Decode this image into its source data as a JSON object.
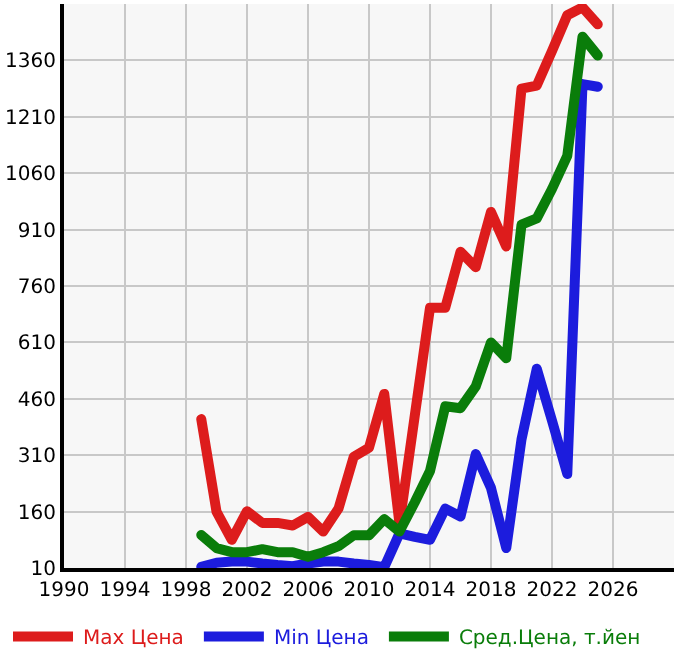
{
  "chart_data": {
    "type": "line",
    "x": [
      1999,
      2000,
      2001,
      2002,
      2003,
      2004,
      2005,
      2006,
      2007,
      2008,
      2009,
      2010,
      2011,
      2012,
      2013,
      2014,
      2015,
      2016,
      2017,
      2018,
      2019,
      2020,
      2021,
      2022,
      2023,
      2024,
      2025
    ],
    "series": [
      {
        "name": "Max Цена",
        "color": "#dd1c1c",
        "values": [
          406,
          160,
          85,
          161,
          130,
          130,
          123,
          146,
          107,
          168,
          306,
          330,
          473,
          127,
          415,
          702,
          702,
          851,
          810,
          957,
          865,
          1285,
          1293,
          1385,
          1480,
          1501,
          1456
        ]
      },
      {
        "name": "Min Цена",
        "color": "#1c1cdd",
        "values": [
          13,
          24,
          27,
          27,
          22,
          18,
          15,
          22,
          27,
          27,
          22,
          18,
          12,
          102,
          93,
          85,
          168,
          147,
          313,
          223,
          63,
          352,
          540,
          402,
          260,
          1297,
          1290
        ]
      },
      {
        "name": "Сред.Цена, т.йен",
        "color": "#0a7d0a",
        "values": [
          98,
          63,
          52,
          52,
          60,
          52,
          52,
          40,
          52,
          68,
          97,
          97,
          140,
          107,
          185,
          268,
          440,
          435,
          493,
          610,
          568,
          923,
          940,
          1018,
          1106,
          1423,
          1373
        ]
      }
    ],
    "xlim": [
      1990,
      2030
    ],
    "xticks": [
      1990,
      1994,
      1998,
      2002,
      2006,
      2010,
      2014,
      2018,
      2022,
      2026
    ],
    "ylim": [
      10,
      1510
    ],
    "yticks": [
      10,
      160,
      310,
      460,
      610,
      760,
      910,
      1060,
      1210,
      1360
    ],
    "grid": true,
    "legend": "bottom",
    "marker": "none",
    "line_style": "solid"
  }
}
